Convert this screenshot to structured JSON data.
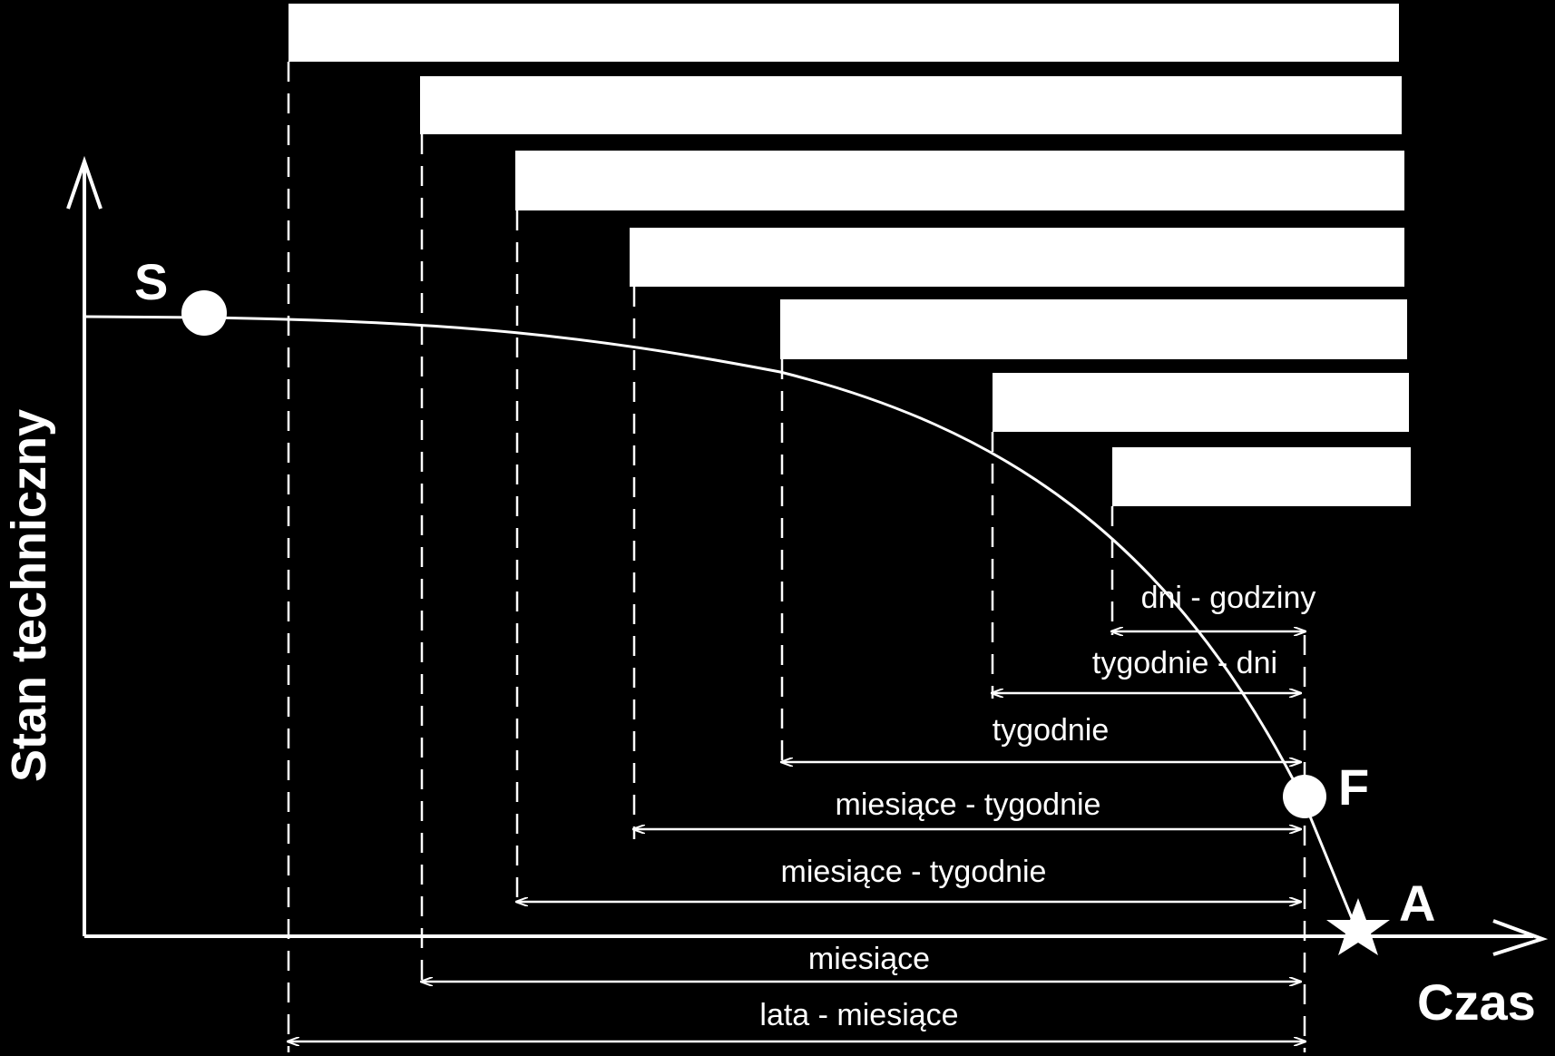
{
  "axes": {
    "y_label": "Stan techniczny",
    "x_label": "Czas"
  },
  "points": {
    "s": "S",
    "f": "F",
    "a": "A"
  },
  "bars": [
    {
      "id": "bar-1",
      "text": ""
    },
    {
      "id": "bar-2",
      "text": ""
    },
    {
      "id": "bar-3",
      "text": ""
    },
    {
      "id": "bar-4",
      "text": ""
    },
    {
      "id": "bar-5",
      "text": ""
    },
    {
      "id": "bar-6",
      "text": ""
    },
    {
      "id": "bar-7",
      "text": ""
    }
  ],
  "intervals": [
    "dni - godziny",
    "tygodnie - dni",
    "tygodnie",
    "miesiące - tygodnie",
    "miesiące - tygodnie",
    "miesiące",
    "lata - miesiące"
  ],
  "colors": {
    "background": "#000000",
    "foreground": "#ffffff"
  }
}
